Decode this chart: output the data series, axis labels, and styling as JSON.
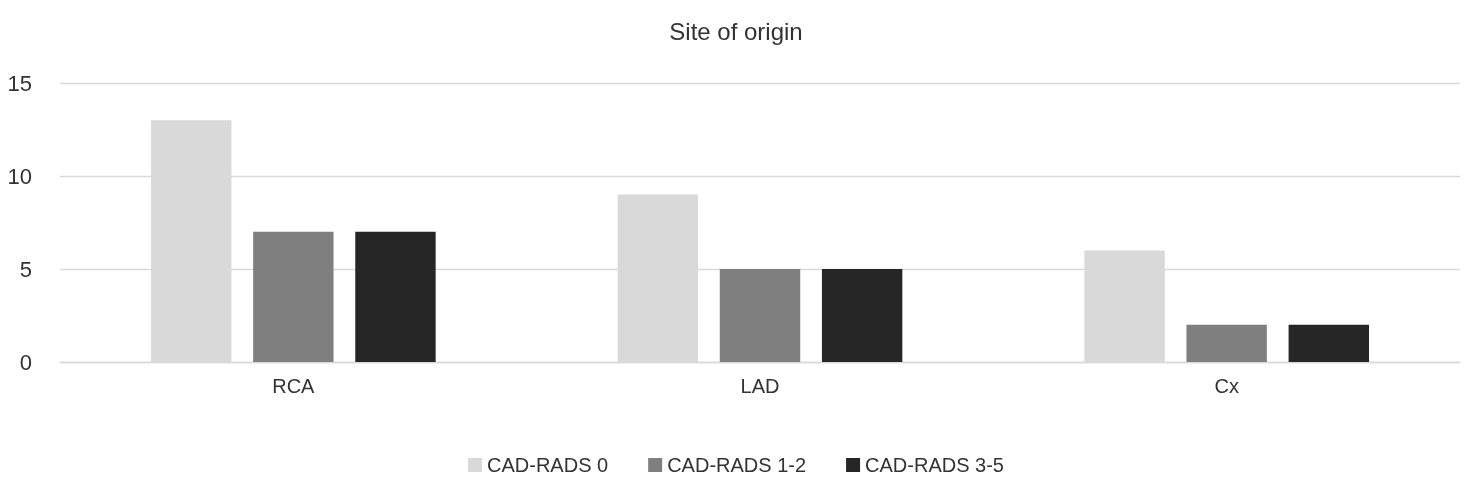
{
  "chart_data": {
    "type": "bar",
    "title": "Site of origin",
    "categories": [
      "RCA",
      "LAD",
      "Cx"
    ],
    "series": [
      {
        "name": "CAD-RADS 0",
        "color": "#d9d9d9",
        "values": [
          13,
          9,
          6
        ]
      },
      {
        "name": "CAD-RADS 1-2",
        "color": "#7f7f7f",
        "values": [
          7,
          5,
          2
        ]
      },
      {
        "name": "CAD-RADS 3-5",
        "color": "#262626",
        "values": [
          7,
          5,
          2
        ]
      }
    ],
    "ylim": [
      0,
      15
    ],
    "yticks": [
      0,
      5,
      10,
      15
    ],
    "grid": "y",
    "legend": "bottom"
  }
}
